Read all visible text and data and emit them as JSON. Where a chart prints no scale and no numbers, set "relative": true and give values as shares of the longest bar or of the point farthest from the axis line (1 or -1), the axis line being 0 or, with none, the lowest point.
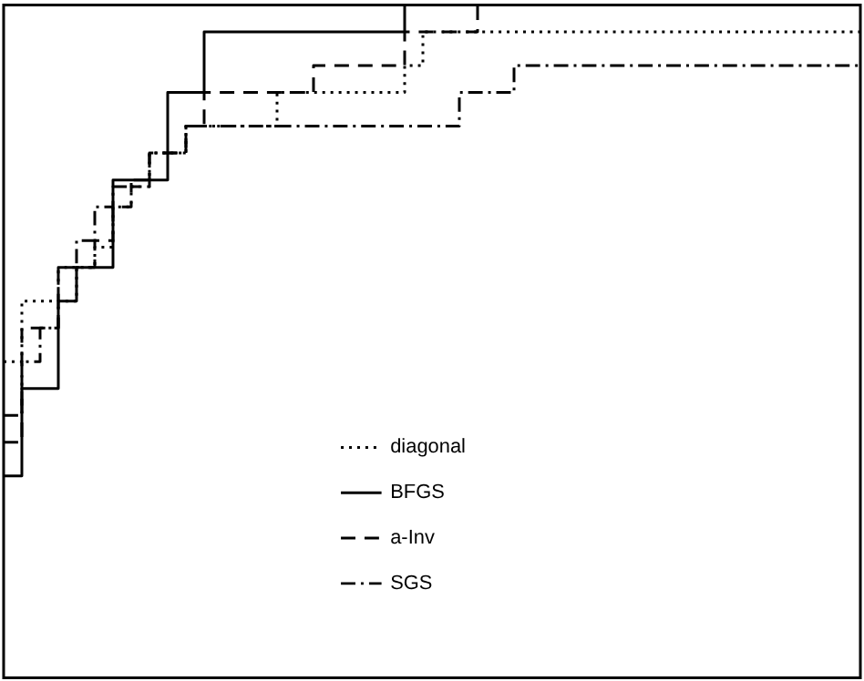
{
  "chart_data": {
    "type": "step",
    "relative": true,
    "legend": "bottom",
    "categories": [
      null,
      null,
      null,
      null,
      null,
      null,
      null,
      null,
      null,
      null,
      null,
      null,
      null,
      null,
      null,
      null,
      null,
      null,
      null,
      null,
      null,
      null,
      null,
      null,
      null,
      null,
      null,
      null,
      null,
      null,
      null,
      null,
      null,
      null,
      null,
      null,
      null,
      null,
      null,
      null,
      null,
      null,
      null,
      null,
      null,
      null,
      null,
      null
    ],
    "series": [
      {
        "name": "diagonal",
        "color": "#000000",
        "line_style": "dotted",
        "values": [
          0.47,
          0.56,
          0.56,
          0.56,
          0.61,
          0.64,
          0.7,
          0.73,
          0.78,
          0.78,
          0.82,
          0.82,
          0.82,
          0.82,
          0.82,
          0.87,
          0.87,
          0.87,
          0.87,
          0.87,
          0.87,
          0.87,
          0.91,
          0.96,
          0.96,
          0.96,
          0.96,
          0.96,
          0.96,
          0.96,
          0.96,
          0.96,
          0.96,
          0.96,
          0.96,
          0.96,
          0.96,
          0.96,
          0.96,
          0.96,
          0.96,
          0.96,
          0.96,
          0.96,
          0.96,
          0.96,
          0.96,
          0.96
        ]
      },
      {
        "name": "BFGS",
        "color": "#000000",
        "line_style": "solid",
        "values": [
          0.3,
          0.43,
          0.43,
          0.56,
          0.61,
          0.61,
          0.74,
          0.74,
          0.74,
          0.87,
          0.87,
          0.96,
          0.96,
          0.96,
          0.96,
          0.96,
          0.96,
          0.96,
          0.96,
          0.96,
          0.96,
          0.96,
          1,
          1,
          1,
          1,
          1,
          1,
          1,
          1,
          1,
          1,
          1,
          1,
          1,
          1,
          1,
          1,
          1,
          1,
          1,
          1,
          1,
          1,
          1,
          1,
          1,
          1
        ]
      },
      {
        "name": "a-Inv",
        "color": "#000000",
        "line_style": "dashed",
        "values": [
          0.35,
          0.52,
          0.52,
          0.61,
          0.61,
          0.65,
          0.7,
          0.73,
          0.78,
          0.78,
          0.82,
          0.87,
          0.87,
          0.87,
          0.87,
          0.87,
          0.87,
          0.91,
          0.91,
          0.91,
          0.91,
          0.91,
          0.96,
          0.96,
          0.96,
          0.96,
          1,
          1,
          1,
          1,
          1,
          1,
          1,
          1,
          1,
          1,
          1,
          1,
          1,
          1,
          1,
          1,
          1,
          1,
          1,
          1,
          1,
          1
        ]
      },
      {
        "name": "SGS",
        "color": "#000000",
        "line_style": "dashdot",
        "values": [
          0.39,
          0.47,
          0.52,
          0.61,
          0.65,
          0.7,
          0.73,
          0.74,
          0.78,
          0.78,
          0.82,
          0.82,
          0.82,
          0.82,
          0.82,
          0.82,
          0.82,
          0.82,
          0.82,
          0.82,
          0.82,
          0.82,
          0.82,
          0.82,
          0.82,
          0.87,
          0.87,
          0.87,
          0.91,
          0.91,
          0.91,
          0.91,
          0.91,
          0.91,
          0.91,
          0.91,
          0.91,
          0.91,
          0.91,
          0.91,
          0.91,
          0.91,
          0.91,
          0.91,
          0.91,
          0.91,
          0.91,
          0.91
        ]
      }
    ]
  }
}
